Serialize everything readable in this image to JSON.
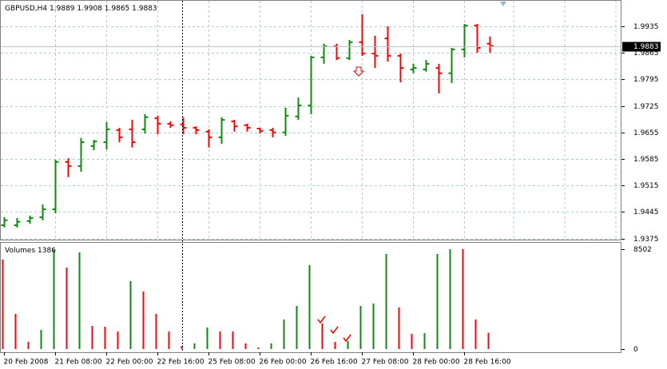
{
  "chart_data": {
    "type": "ohlc",
    "title": "GBPUSD,H4",
    "open": [
      1.941,
      1.941,
      1.9421,
      1.9431,
      1.9452,
      1.9577,
      1.9566,
      1.9619,
      1.9629,
      1.9661,
      1.9663,
      1.9663,
      1.9692,
      1.9678,
      1.9676,
      1.9667,
      1.9657,
      1.9642,
      1.9684,
      1.9674,
      1.9665,
      1.9661,
      1.9655,
      1.9697,
      1.9726,
      1.9853,
      1.9882,
      1.9851,
      1.9893,
      1.9863,
      1.9903,
      1.9857,
      1.9821,
      1.9821,
      1.9825,
      1.9811,
      1.9874,
      1.9937,
      1.9889
    ],
    "high": [
      1.9431,
      1.9429,
      1.9435,
      1.9465,
      1.9583,
      1.9587,
      1.964,
      1.9635,
      1.9682,
      1.9667,
      1.9688,
      1.9703,
      1.9699,
      1.9684,
      1.9695,
      1.9671,
      1.9663,
      1.9695,
      1.9688,
      1.9678,
      1.9667,
      1.9667,
      1.972,
      1.9747,
      1.9857,
      1.9889,
      1.9889,
      1.9899,
      1.9967,
      1.991,
      1.9935,
      1.9863,
      1.9836,
      1.9846,
      1.9836,
      1.9878,
      1.9941,
      1.9941,
      1.9908
    ],
    "low": [
      1.9404,
      1.9404,
      1.9414,
      1.9423,
      1.9442,
      1.9537,
      1.9551,
      1.9608,
      1.961,
      1.9629,
      1.9615,
      1.9652,
      1.965,
      1.9667,
      1.965,
      1.965,
      1.9615,
      1.9625,
      1.9657,
      1.9657,
      1.9652,
      1.9642,
      1.9646,
      1.9688,
      1.9703,
      1.9836,
      1.9846,
      1.9846,
      1.9857,
      1.9825,
      1.9842,
      1.9787,
      1.9811,
      1.9815,
      1.9758,
      1.9785,
      1.9853,
      1.9865,
      1.9865
    ],
    "close": [
      1.9423,
      1.9419,
      1.9429,
      1.9452,
      1.9577,
      1.9566,
      1.9629,
      1.9631,
      1.9663,
      1.9642,
      1.9629,
      1.9695,
      1.9678,
      1.9674,
      1.9667,
      1.9661,
      1.9642,
      1.9688,
      1.9671,
      1.9667,
      1.9659,
      1.9655,
      1.9699,
      1.9726,
      1.9853,
      1.9882,
      1.9851,
      1.9893,
      1.9863,
      1.9857,
      1.9857,
      1.9825,
      1.9825,
      1.9836,
      1.9811,
      1.9874,
      1.9937,
      1.9878,
      1.9883
    ],
    "up_color": "#108a10",
    "down_color": "#ff0000",
    "xlim": [
      -0.3,
      48.3
    ],
    "xticks": [
      {
        "value": 0,
        "label": "20 Feb 2008"
      },
      {
        "value": 4,
        "label": "21 Feb 08:00"
      },
      {
        "value": 8,
        "label": "22 Feb 00:00"
      },
      {
        "value": 12,
        "label": "22 Feb 16:00"
      },
      {
        "value": 16,
        "label": "25 Feb 08:00"
      },
      {
        "value": 20,
        "label": "26 Feb 00:00"
      },
      {
        "value": 24,
        "label": "26 Feb 16:00"
      },
      {
        "value": 28,
        "label": "27 Feb 08:00"
      },
      {
        "value": 32,
        "label": "28 Feb 00:00"
      },
      {
        "value": 36,
        "label": "28 Feb 16:00"
      }
    ],
    "ylim": [
      1.9372,
      1.9998
    ],
    "yticks": [
      1.9375,
      1.9445,
      1.9515,
      1.9585,
      1.9655,
      1.9725,
      1.9795,
      1.9865,
      1.9935
    ],
    "grid": true,
    "volume": {
      "title": "Volumes",
      "values": [
        7618,
        2993,
        612,
        1632,
        8434,
        6938,
        8230,
        1972,
        1900,
        1496,
        5781,
        4897,
        2993,
        1496,
        272,
        476,
        1836,
        1496,
        1496,
        476,
        136,
        476,
        2517,
        3673,
        7142,
        2177,
        612,
        700,
        3673,
        3877,
        8094,
        3537,
        1292,
        1350,
        8094,
        8502,
        8502,
        2517,
        1386
      ],
      "ylim": [
        0,
        8502
      ],
      "yticks": [
        0,
        8502
      ],
      "up_color": "#108a10",
      "down_color": "#ff0000"
    }
  }
}
